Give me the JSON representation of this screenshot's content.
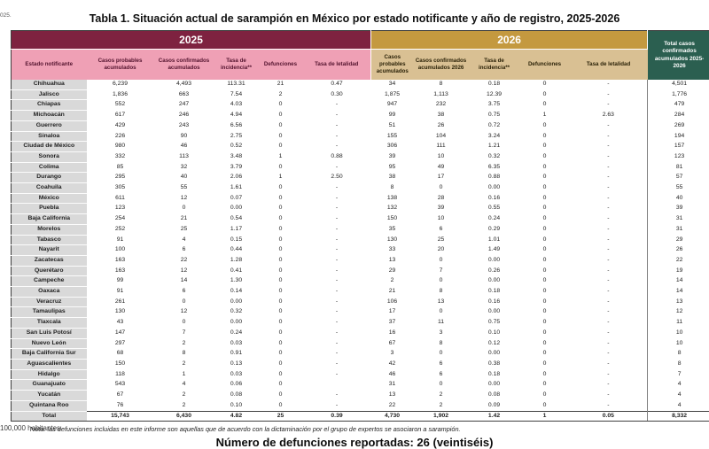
{
  "page": {
    "top_fragment": "025.",
    "title": "Tabla 1. Situación actual de sarampión en México por estado notificante y año de registro, 2025-2026",
    "note": "Nota: las defunciones incluidas en este informe son aquellas que de acuerdo con la dictaminación por el grupo de expertos se asociaron a sarampión.",
    "footer_headline": "Número de defunciones reportadas: 26 (veintiséis)",
    "footnote_fragment": "100,000 habitantes"
  },
  "colors": {
    "band_2025": "#7e2240",
    "band_2026": "#c4993f",
    "subheader_2025": "#efa0b5",
    "subheader_2026": "#d9c093",
    "total_column": "#2b5f50",
    "state_column": "#d9d9d9"
  },
  "table": {
    "year_2025": "2025",
    "year_2026": "2026",
    "total_header": "Total casos confirmados acumulados 2025-2026",
    "columns_2025": [
      "Estado notificante",
      "Casos probables acumulados",
      "Casos confirmados acumulados",
      "Tasa de incidencia**",
      "Defunciones",
      "Tasa de letalidad"
    ],
    "columns_2026": [
      "Casos probables acumulados",
      "Casos confirmados acumulados 2026",
      "Tasa de incidencia**",
      "Defunciones",
      "Tasa de letalidad"
    ],
    "rows": [
      {
        "state": "Chihuahua",
        "values": [
          "6,239",
          "4,493",
          "113.31",
          "21",
          "0.47",
          "34",
          "8",
          "0.18",
          "0",
          "-",
          "4,501"
        ]
      },
      {
        "state": "Jalisco",
        "values": [
          "1,836",
          "663",
          "7.54",
          "2",
          "0.30",
          "1,875",
          "1,113",
          "12.39",
          "0",
          "-",
          "1,776"
        ]
      },
      {
        "state": "Chiapas",
        "values": [
          "552",
          "247",
          "4.03",
          "0",
          "-",
          "947",
          "232",
          "3.75",
          "0",
          "-",
          "479"
        ]
      },
      {
        "state": "Michoacán",
        "values": [
          "617",
          "246",
          "4.94",
          "0",
          "-",
          "99",
          "38",
          "0.75",
          "1",
          "2.63",
          "284"
        ]
      },
      {
        "state": "Guerrero",
        "values": [
          "429",
          "243",
          "6.56",
          "0",
          "-",
          "51",
          "26",
          "0.72",
          "0",
          "-",
          "269"
        ]
      },
      {
        "state": "Sinaloa",
        "values": [
          "226",
          "90",
          "2.75",
          "0",
          "-",
          "155",
          "104",
          "3.24",
          "0",
          "-",
          "194"
        ]
      },
      {
        "state": "Ciudad de México",
        "values": [
          "980",
          "46",
          "0.52",
          "0",
          "-",
          "306",
          "111",
          "1.21",
          "0",
          "-",
          "157"
        ]
      },
      {
        "state": "Sonora",
        "values": [
          "332",
          "113",
          "3.48",
          "1",
          "0.88",
          "39",
          "10",
          "0.32",
          "0",
          "-",
          "123"
        ]
      },
      {
        "state": "Colima",
        "values": [
          "85",
          "32",
          "3.79",
          "0",
          "-",
          "95",
          "49",
          "6.35",
          "0",
          "-",
          "81"
        ]
      },
      {
        "state": "Durango",
        "values": [
          "295",
          "40",
          "2.06",
          "1",
          "2.50",
          "38",
          "17",
          "0.88",
          "0",
          "-",
          "57"
        ]
      },
      {
        "state": "Coahuila",
        "values": [
          "305",
          "55",
          "1.61",
          "0",
          "-",
          "8",
          "0",
          "0.00",
          "0",
          "-",
          "55"
        ]
      },
      {
        "state": "México",
        "values": [
          "611",
          "12",
          "0.07",
          "0",
          "-",
          "138",
          "28",
          "0.16",
          "0",
          "-",
          "40"
        ]
      },
      {
        "state": "Puebla",
        "values": [
          "123",
          "0",
          "0.00",
          "0",
          "-",
          "132",
          "39",
          "0.55",
          "0",
          "-",
          "39"
        ]
      },
      {
        "state": "Baja California",
        "values": [
          "254",
          "21",
          "0.54",
          "0",
          "-",
          "150",
          "10",
          "0.24",
          "0",
          "-",
          "31"
        ]
      },
      {
        "state": "Morelos",
        "values": [
          "252",
          "25",
          "1.17",
          "0",
          "-",
          "35",
          "6",
          "0.29",
          "0",
          "-",
          "31"
        ]
      },
      {
        "state": "Tabasco",
        "values": [
          "91",
          "4",
          "0.15",
          "0",
          "-",
          "130",
          "25",
          "1.01",
          "0",
          "-",
          "29"
        ]
      },
      {
        "state": "Nayarit",
        "values": [
          "100",
          "6",
          "0.44",
          "0",
          "-",
          "33",
          "20",
          "1.49",
          "0",
          "-",
          "26"
        ]
      },
      {
        "state": "Zacatecas",
        "values": [
          "163",
          "22",
          "1.28",
          "0",
          "-",
          "13",
          "0",
          "0.00",
          "0",
          "-",
          "22"
        ]
      },
      {
        "state": "Querétaro",
        "values": [
          "163",
          "12",
          "0.41",
          "0",
          "-",
          "29",
          "7",
          "0.26",
          "0",
          "-",
          "19"
        ]
      },
      {
        "state": "Campeche",
        "values": [
          "99",
          "14",
          "1.30",
          "0",
          "-",
          "2",
          "0",
          "0.00",
          "0",
          "-",
          "14"
        ]
      },
      {
        "state": "Oaxaca",
        "values": [
          "91",
          "6",
          "0.14",
          "0",
          "-",
          "21",
          "8",
          "0.18",
          "0",
          "-",
          "14"
        ]
      },
      {
        "state": "Veracruz",
        "values": [
          "261",
          "0",
          "0.00",
          "0",
          "-",
          "106",
          "13",
          "0.16",
          "0",
          "-",
          "13"
        ]
      },
      {
        "state": "Tamaulipas",
        "values": [
          "130",
          "12",
          "0.32",
          "0",
          "-",
          "17",
          "0",
          "0.00",
          "0",
          "-",
          "12"
        ]
      },
      {
        "state": "Tlaxcala",
        "values": [
          "43",
          "0",
          "0.00",
          "0",
          "-",
          "37",
          "11",
          "0.75",
          "0",
          "-",
          "11"
        ]
      },
      {
        "state": "San Luis Potosí",
        "values": [
          "147",
          "7",
          "0.24",
          "0",
          "-",
          "16",
          "3",
          "0.10",
          "0",
          "-",
          "10"
        ]
      },
      {
        "state": "Nuevo León",
        "values": [
          "297",
          "2",
          "0.03",
          "0",
          "-",
          "67",
          "8",
          "0.12",
          "0",
          "-",
          "10"
        ]
      },
      {
        "state": "Baja California Sur",
        "values": [
          "68",
          "8",
          "0.91",
          "0",
          "-",
          "3",
          "0",
          "0.00",
          "0",
          "-",
          "8"
        ]
      },
      {
        "state": "Aguascalientes",
        "values": [
          "150",
          "2",
          "0.13",
          "0",
          "-",
          "42",
          "6",
          "0.38",
          "0",
          "-",
          "8"
        ]
      },
      {
        "state": "Hidalgo",
        "values": [
          "118",
          "1",
          "0.03",
          "0",
          "-",
          "46",
          "6",
          "0.18",
          "0",
          "-",
          "7"
        ]
      },
      {
        "state": "Guanajuato",
        "values": [
          "543",
          "4",
          "0.06",
          "0",
          "",
          "31",
          "0",
          "0.00",
          "0",
          "-",
          "4"
        ]
      },
      {
        "state": "Yucatán",
        "values": [
          "67",
          "2",
          "0.08",
          "0",
          "-",
          "13",
          "2",
          "0.08",
          "0",
          "-",
          "4"
        ]
      },
      {
        "state": "Quintana Roo",
        "values": [
          "76",
          "2",
          "0.10",
          "0",
          "-",
          "22",
          "2",
          "0.09",
          "0",
          "-",
          "4"
        ]
      }
    ],
    "total_row": {
      "state": "Total",
      "values": [
        "15,743",
        "6,430",
        "4.82",
        "25",
        "0.39",
        "4,730",
        "1,902",
        "1.42",
        "1",
        "0.05",
        "8,332"
      ]
    }
  }
}
